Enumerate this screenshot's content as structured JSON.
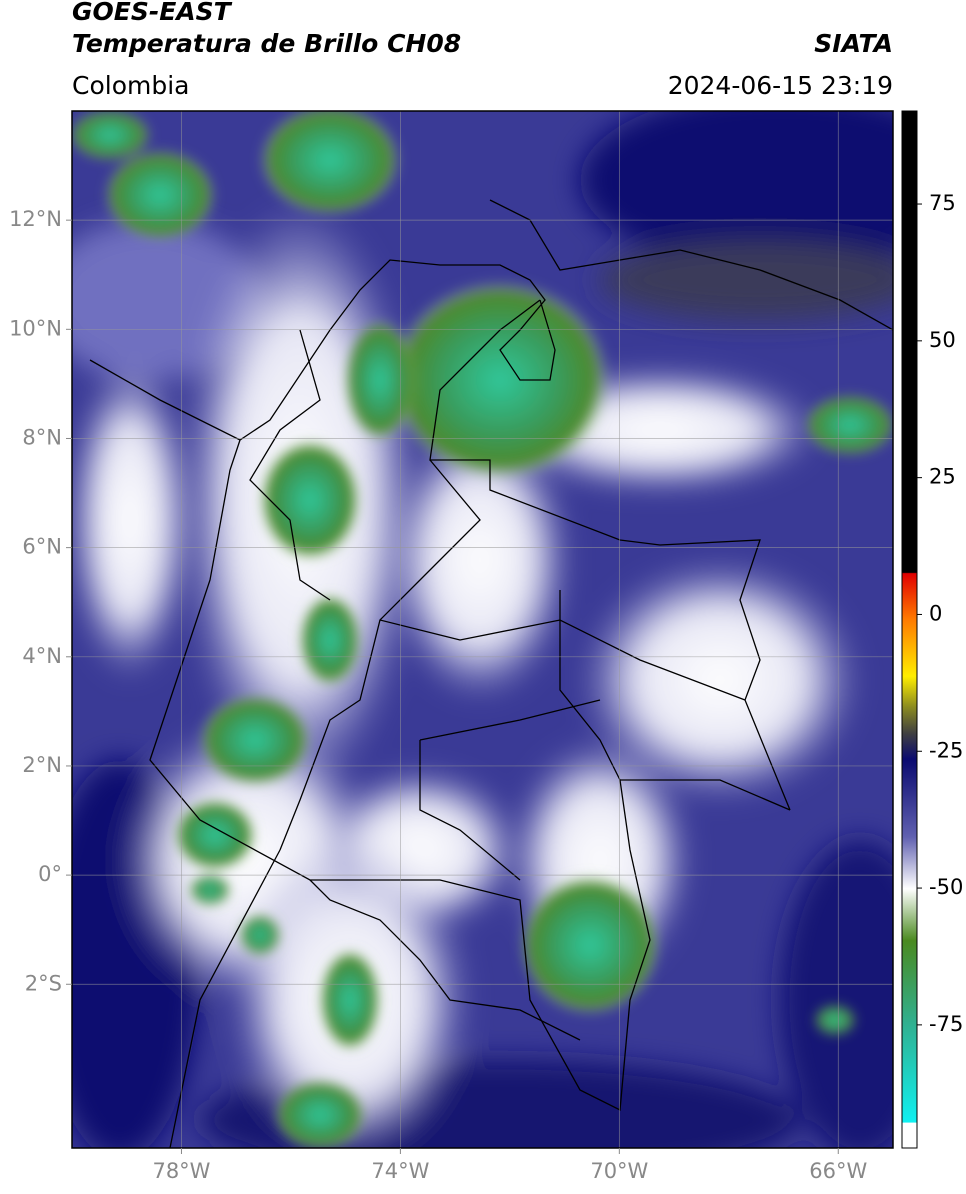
{
  "header": {
    "title": "GOES-EAST",
    "subtitle": "Temperatura de Brillo CH08",
    "source": "SIATA",
    "region": "Colombia",
    "datetime": "2024-06-15 23:19"
  },
  "map": {
    "xlim": [
      -80,
      -65
    ],
    "ylim": [
      -5,
      14
    ],
    "xticks": [
      {
        "value": -78,
        "label": "78°W"
      },
      {
        "value": -74,
        "label": "74°W"
      },
      {
        "value": -70,
        "label": "70°W"
      },
      {
        "value": -66,
        "label": "66°W"
      }
    ],
    "yticks": [
      {
        "value": 12,
        "label": "12°N"
      },
      {
        "value": 10,
        "label": "10°N"
      },
      {
        "value": 8,
        "label": "8°N"
      },
      {
        "value": 6,
        "label": "6°N"
      },
      {
        "value": 4,
        "label": "4°N"
      },
      {
        "value": 2,
        "label": "2°N"
      },
      {
        "value": 0,
        "label": "0°"
      },
      {
        "value": -2,
        "label": "2°S"
      }
    ],
    "grid": true
  },
  "colorbar": {
    "lim": [
      -97.5,
      92
    ],
    "ticks": [
      75,
      50,
      25,
      0,
      -25,
      -50,
      -75
    ]
  }
}
